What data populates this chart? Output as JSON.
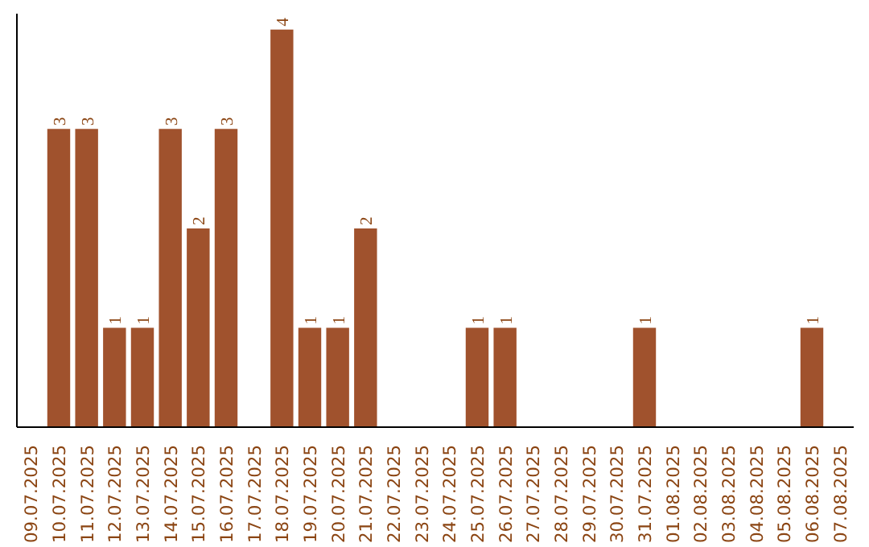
{
  "chart_data": {
    "type": "bar",
    "categories": [
      "09.07.2025",
      "10.07.2025",
      "11.07.2025",
      "12.07.2025",
      "13.07.2025",
      "14.07.2025",
      "15.07.2025",
      "16.07.2025",
      "17.07.2025",
      "18.07.2025",
      "19.07.2025",
      "20.07.2025",
      "21.07.2025",
      "22.07.2025",
      "23.07.2025",
      "24.07.2025",
      "25.07.2025",
      "26.07.2025",
      "27.07.2025",
      "28.07.2025",
      "29.07.2025",
      "30.07.2025",
      "31.07.2025",
      "01.08.2025",
      "02.08.2025",
      "03.08.2025",
      "04.08.2025",
      "05.08.2025",
      "06.08.2025",
      "07.08.2025"
    ],
    "values": [
      0,
      3,
      3,
      1,
      1,
      3,
      2,
      3,
      0,
      4,
      1,
      1,
      2,
      0,
      0,
      0,
      1,
      1,
      0,
      0,
      0,
      0,
      1,
      0,
      0,
      0,
      0,
      0,
      1,
      0
    ],
    "value_labels": [
      null,
      "3",
      "3",
      "1",
      "1",
      "3",
      "2",
      "3",
      null,
      "4",
      "1",
      "1",
      "2",
      null,
      null,
      null,
      "1",
      "1",
      null,
      null,
      null,
      null,
      "1",
      null,
      null,
      null,
      null,
      null,
      "1",
      null
    ],
    "color": "#a0522d",
    "grid": false
  }
}
